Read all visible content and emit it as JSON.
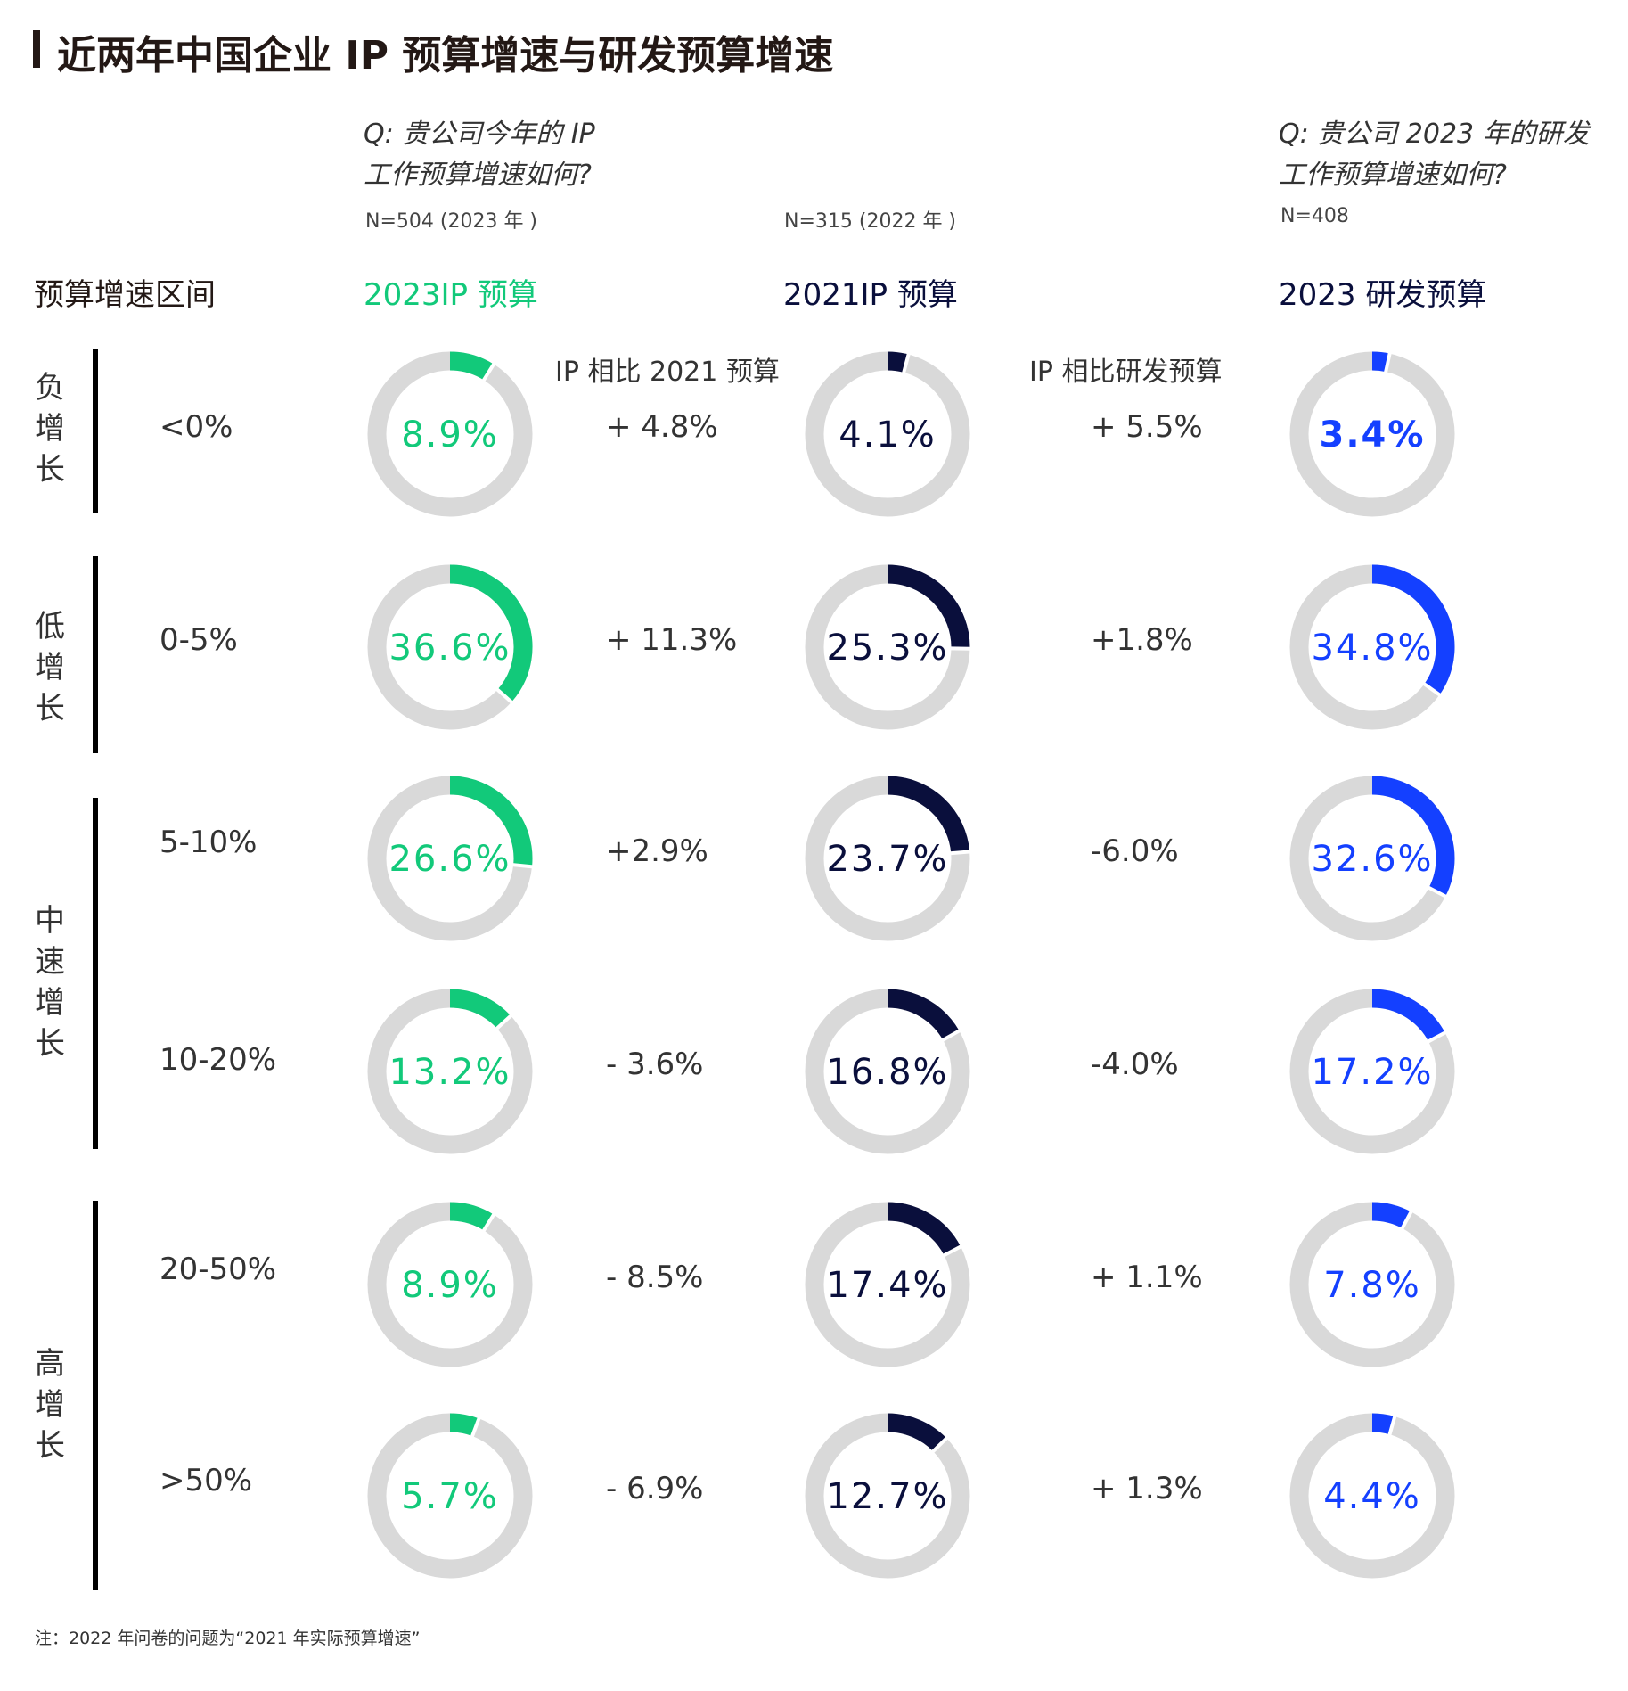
{
  "title": "近两年中国企业 IP 预算增速与研发预算增速",
  "questions": {
    "ip": [
      "Q: 贵公司今年的 IP",
      "工作预算增速如何?"
    ],
    "rd": [
      "Q: 贵公司 2023 年的研发",
      "工作预算增速如何?"
    ]
  },
  "samples": [
    "N=504 (2023 年 )",
    "N=315 (2022 年 )",
    "N=408"
  ],
  "row_header": "预算增速区间",
  "compare_headers": [
    "IP 相比 2021 预算",
    "IP 相比研发预算"
  ],
  "groups": [
    {
      "label": "负增长"
    },
    {
      "label": "低增长"
    },
    {
      "label": "中速增长"
    },
    {
      "label": "高增长"
    }
  ],
  "footnote": "注：2022 年问卷的问题为“2021 年实际预算增速”",
  "chart_data": {
    "type": "donut-grid",
    "categories": [
      "<0%",
      "0-5%",
      "5-10%",
      "10-20%",
      "20-50%",
      ">50%"
    ],
    "series": [
      {
        "name": "2023IP 预算",
        "color": "#12c97a",
        "values": [
          8.9,
          36.6,
          26.6,
          13.2,
          8.9,
          5.7
        ],
        "labels": [
          "8.9%",
          "36.6%",
          "26.6%",
          "13.2%",
          "8.9%",
          "5.7%"
        ]
      },
      {
        "name": "2021IP 预算",
        "color": "#0a0f3c",
        "values": [
          4.1,
          25.3,
          23.7,
          16.8,
          17.4,
          12.7
        ],
        "labels": [
          "4.1%",
          "25.3%",
          "23.7%",
          "16.8%",
          "17.4%",
          "12.7%"
        ]
      },
      {
        "name": "2023 研发预算",
        "color": "#1440ff",
        "values": [
          3.4,
          34.8,
          32.6,
          17.2,
          7.8,
          4.4
        ],
        "labels": [
          "3.4%",
          "34.8%",
          "32.6%",
          "17.2%",
          "7.8%",
          "4.4%"
        ]
      }
    ],
    "ip_vs_2021": [
      "+ 4.8%",
      "+ 11.3%",
      "+2.9%",
      "- 3.6%",
      "- 8.5%",
      "- 6.9%"
    ],
    "ip_vs_rd": [
      "+ 5.5%",
      "+1.8%",
      "-6.0%",
      "-4.0%",
      "+ 1.1%",
      "+ 1.3%"
    ],
    "track_color": "#d9d9d9",
    "max": 100
  }
}
